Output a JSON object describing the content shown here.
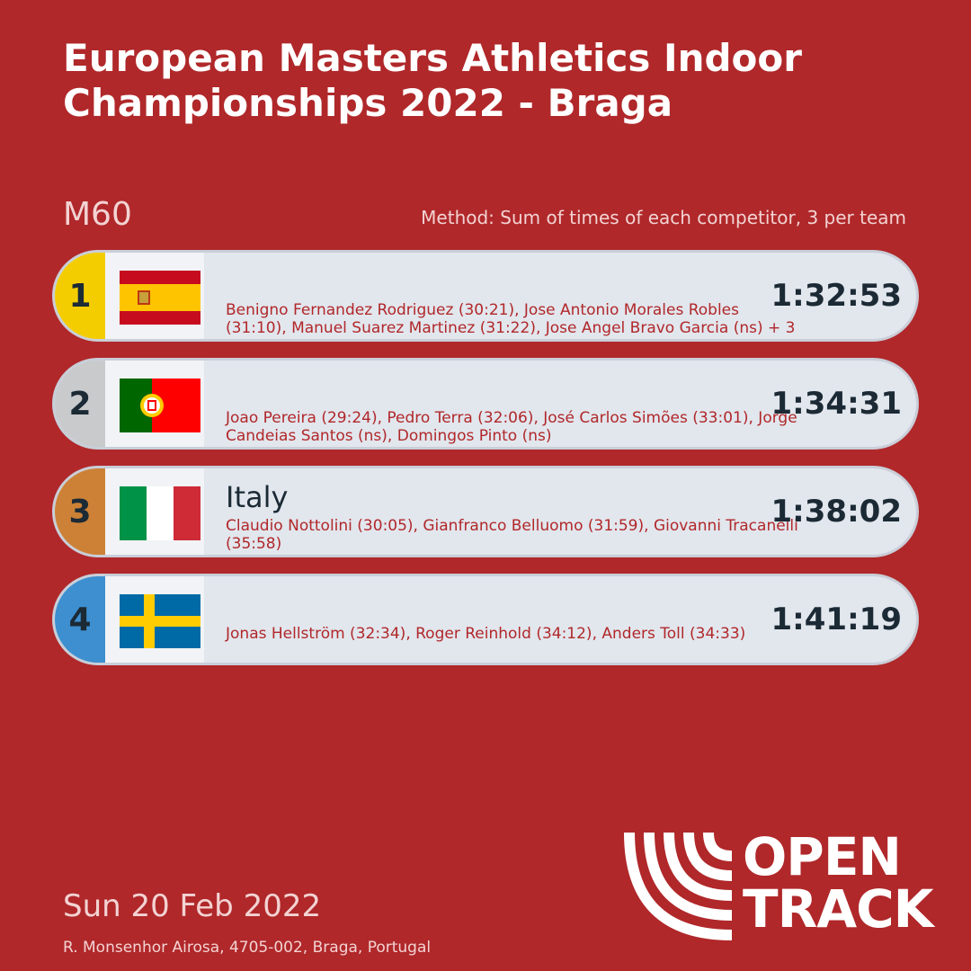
{
  "header": {
    "title_line1": "European Masters Athletics Indoor",
    "title_line2": "Championships 2022 - Braga",
    "category": "M60",
    "method": "Method: Sum of times of each competitor, 3 per team"
  },
  "results": [
    {
      "rank": "1",
      "country": "",
      "flag_icon": "spain-flag-icon",
      "rank_color": "#f4cd00",
      "athletes": "Benigno Fernandez Rodriguez (30:21), Jose Antonio Morales Robles (31:10), Manuel Suarez Martinez (31:22), Jose Angel Bravo Garcia (ns) + 3",
      "time": "1:32:53"
    },
    {
      "rank": "2",
      "country": "",
      "flag_icon": "portugal-flag-icon",
      "rank_color": "#c8cacc",
      "athletes": "Joao Pereira (29:24), Pedro Terra (32:06), José Carlos Simões (33:01), Jorge Candeias Santos (ns), Domingos Pinto (ns)",
      "time": "1:34:31"
    },
    {
      "rank": "3",
      "country": "Italy",
      "flag_icon": "italy-flag-icon",
      "rank_color": "#cd8136",
      "athletes": "Claudio Nottolini (30:05), Gianfranco Belluomo (31:59), Giovanni Tracanelli (35:58)",
      "time": "1:38:02"
    },
    {
      "rank": "4",
      "country": "",
      "flag_icon": "sweden-flag-icon",
      "rank_color": "#3d8fd0",
      "athletes": "Jonas Hellström (32:34), Roger Reinhold (34:12), Anders Toll (34:33)",
      "time": "1:41:19"
    }
  ],
  "footer": {
    "date": "Sun 20 Feb 2022",
    "address": "R. Monsenhor Airosa, 4705-002, Braga, Portugal",
    "logo_line1": "OPEN",
    "logo_line2": "TRACK"
  }
}
